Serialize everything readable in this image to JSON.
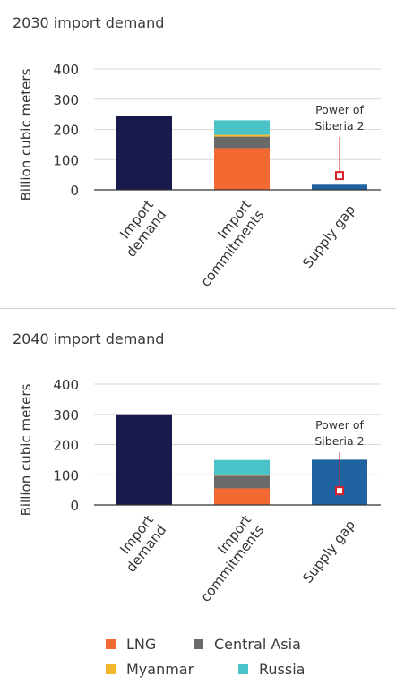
{
  "charts_shared": {
    "ylabel": "Billion cubic meters",
    "categories": [
      "Import\ndemand",
      "Import\ncommitments",
      "Supply gap"
    ],
    "ylim": [
      0,
      400
    ],
    "yticks": [
      0,
      100,
      200,
      300,
      400
    ],
    "annotation": "Power of\nSiberia 2"
  },
  "colors": {
    "Import demand": "#171a4a",
    "Central Asia": "#6a6a6a",
    "LNG": "#f26a32",
    "Myanmar": "#f2b72c",
    "Russia": "#49c3c8",
    "Supply gap": "#1f63a0",
    "annotation": "#d8202a",
    "axis": "#333333",
    "grid": "#d9d9d9"
  },
  "legend": [
    {
      "name": "LNG",
      "color": "#f26a32"
    },
    {
      "name": "Central Asia",
      "color": "#6a6a6a"
    },
    {
      "name": "Myanmar",
      "color": "#f2b72c"
    },
    {
      "name": "Russia",
      "color": "#49c3c8"
    }
  ],
  "chart_data": [
    {
      "type": "bar",
      "title": "2030 import demand",
      "ylabel": "Billion cubic meters",
      "categories": [
        "Import demand",
        "Import commitments",
        "Supply gap"
      ],
      "ylim": [
        0,
        400
      ],
      "grid": true,
      "series": [
        {
          "name": "Import demand",
          "values": [
            246,
            0,
            0
          ]
        },
        {
          "name": "LNG",
          "values": [
            0,
            138,
            0
          ]
        },
        {
          "name": "Central Asia",
          "values": [
            0,
            38,
            0
          ]
        },
        {
          "name": "Myanmar",
          "values": [
            0,
            6,
            0
          ]
        },
        {
          "name": "Russia",
          "values": [
            0,
            48,
            0
          ]
        },
        {
          "name": "Supply gap",
          "values": [
            0,
            0,
            17
          ]
        }
      ],
      "annotation": {
        "text": "Power of Siberia 2",
        "x": "Supply gap",
        "value": 47
      }
    },
    {
      "type": "bar",
      "title": "2040 import demand",
      "ylabel": "Billion cubic meters",
      "categories": [
        "Import demand",
        "Import commitments",
        "Supply gap"
      ],
      "ylim": [
        0,
        400
      ],
      "grid": true,
      "series": [
        {
          "name": "Import demand",
          "values": [
            300,
            0,
            0
          ]
        },
        {
          "name": "LNG",
          "values": [
            0,
            55,
            0
          ]
        },
        {
          "name": "Central Asia",
          "values": [
            0,
            42,
            0
          ]
        },
        {
          "name": "Myanmar",
          "values": [
            0,
            4,
            0
          ]
        },
        {
          "name": "Russia",
          "values": [
            0,
            48,
            0
          ]
        },
        {
          "name": "Supply gap",
          "values": [
            0,
            0,
            150
          ]
        }
      ],
      "annotation": {
        "text": "Power of Siberia 2",
        "x": "Supply gap",
        "value": 47
      }
    }
  ]
}
